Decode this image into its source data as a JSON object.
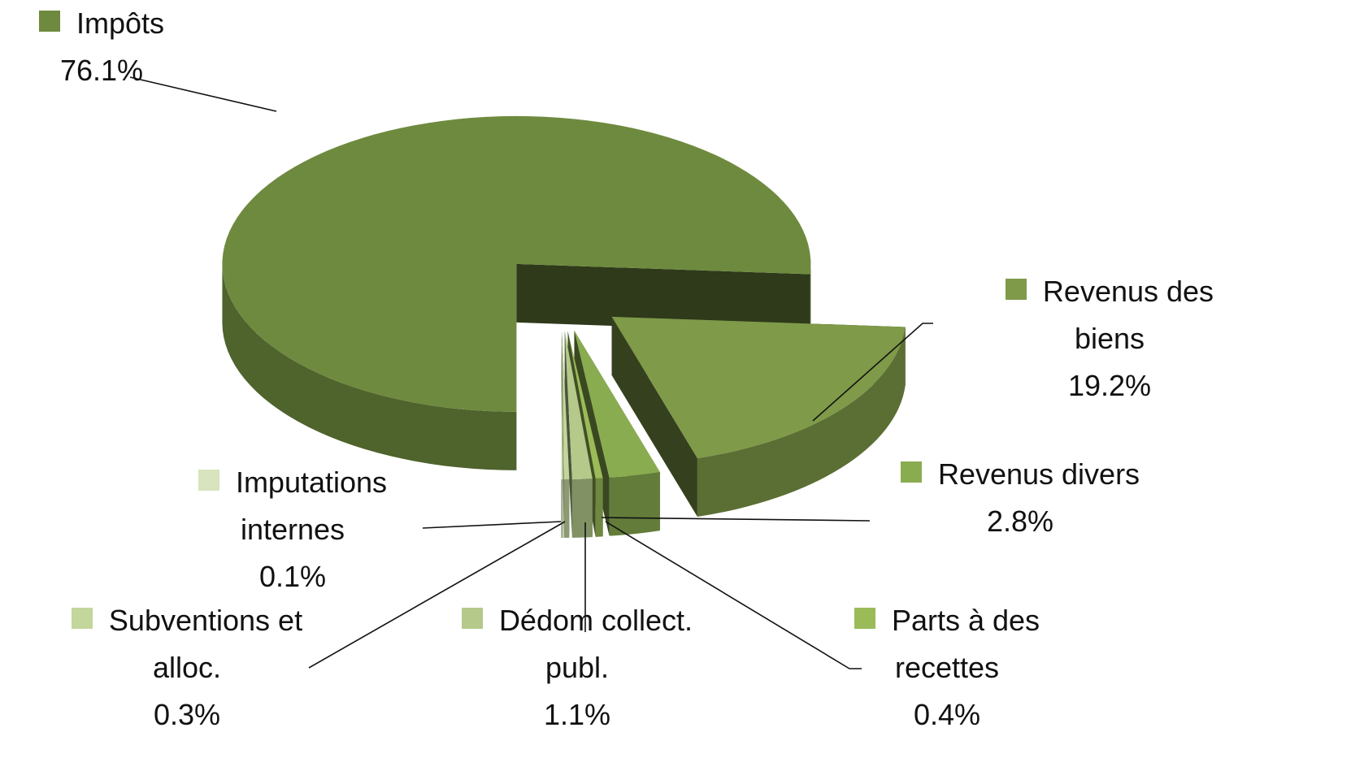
{
  "chart_data": {
    "type": "pie3d",
    "categories": [
      "Impôts",
      "Revenus des biens",
      "Revenus divers",
      "Parts à des recettes",
      "Dédom collect. publ.",
      "Subventions et alloc.",
      "Imputations internes"
    ],
    "values": [
      76.1,
      19.2,
      2.8,
      0.4,
      1.1,
      0.3,
      0.1
    ],
    "value_labels": [
      "76.1%",
      "19.2%",
      "2.8%",
      "0.4%",
      "1.1%",
      "0.3%",
      "0.1%"
    ],
    "colors": [
      "#6e8a3e",
      "#7f9a48",
      "#8aac50",
      "#9bbb59",
      "#b4c98a",
      "#c3d69b",
      "#d7e4bd"
    ]
  }
}
